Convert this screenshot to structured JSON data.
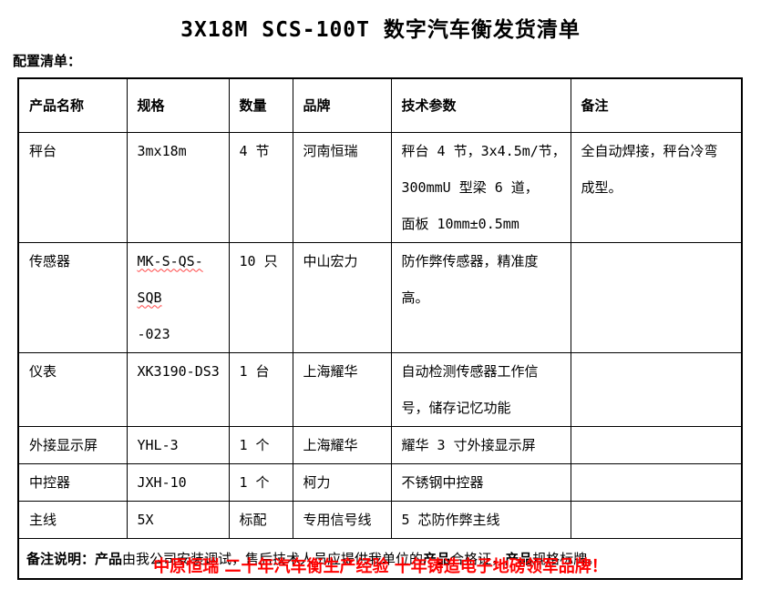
{
  "title": "3X18M SCS-100T 数字汽车衡发货清单",
  "config_label": "配置清单：",
  "colors": {
    "title_black": "#000000",
    "footer_red": "#ff0000",
    "squiggle_red": "#ff4545",
    "border_black": "#000000"
  },
  "table": {
    "headers": [
      "产品名称",
      "规格",
      "数量",
      "品牌",
      "技术参数",
      "备注"
    ],
    "rows": [
      {
        "name": "秤台",
        "spec": "3mx18m",
        "qty": "4 节",
        "brand": "河南恒瑞",
        "tech": "秤台 4 节，3x4.5m/节，\n300mmU 型梁 6 道，\n面板 10mm±0.5mm",
        "note": "全自动焊接，秤台冷弯\n成型。"
      },
      {
        "name": "传感器",
        "spec": "MK-S-QS-SQB\n-023",
        "spec_squiggle": true,
        "qty": "10 只",
        "brand": "中山宏力",
        "tech": "防作弊传感器，精准度\n高。",
        "note": ""
      },
      {
        "name": "仪表",
        "spec": "XK3190-DS3",
        "qty": "1 台",
        "brand": "上海耀华",
        "tech": "自动检测传感器工作信\n号，储存记忆功能",
        "note": ""
      },
      {
        "name": "外接显示屏",
        "spec": "YHL-3",
        "qty": "1 个",
        "brand": "上海耀华",
        "tech": "耀华 3 寸外接显示屏",
        "note": ""
      },
      {
        "name": "中控器",
        "spec": "JXH-10",
        "qty": "1 个",
        "brand": "柯力",
        "tech": "不锈钢中控器",
        "note": ""
      },
      {
        "name": "主线",
        "spec": "5X",
        "qty": "标配",
        "brand": "专用信号线",
        "tech": "5 芯防作弊主线",
        "note": ""
      }
    ],
    "remark": {
      "segments": [
        {
          "text": "备注说明：",
          "bold": true
        },
        {
          "text": "产品",
          "bold": true
        },
        {
          "text": "由我公司安装调试，售后技术人员应提供我单位的",
          "bold": false
        },
        {
          "text": "产品",
          "bold": true
        },
        {
          "text": "合格证，",
          "bold": false
        },
        {
          "text": "产品",
          "bold": true
        },
        {
          "text": "规格标牌。",
          "bold": false
        }
      ]
    }
  },
  "footer": "中原恒瑞 二十年汽车衡生产经验 十年铸造电子地磅领军品牌！"
}
